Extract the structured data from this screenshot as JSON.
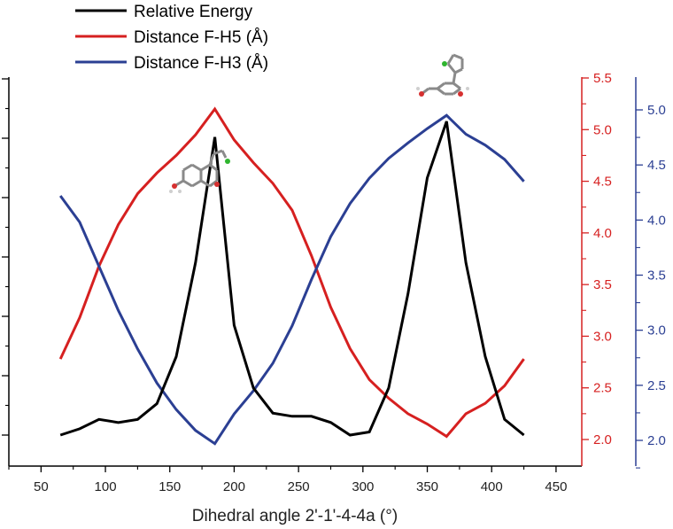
{
  "chart_data": {
    "type": "line",
    "xlabel": "Dihedral angle 2'-1'-4-4a (°)",
    "xlim": [
      25,
      470
    ],
    "x_ticks": [
      50,
      100,
      150,
      200,
      250,
      300,
      350,
      400,
      450
    ],
    "axes": {
      "left": {
        "ylim": [
          0,
          1
        ],
        "color": "#000000",
        "tick_labels": []
      },
      "red": {
        "ylim": [
          1.75,
          5.5
        ],
        "color": "#d62020",
        "ticks": [
          2.0,
          2.5,
          3.0,
          3.5,
          4.0,
          4.5,
          5.0,
          5.5
        ],
        "tick_labels": [
          "2.0",
          "2.5",
          "3.0",
          "3.5",
          "4.0",
          "4.5",
          "5.0",
          "5.5"
        ]
      },
      "blue": {
        "ylim": [
          1.85,
          5.3
        ],
        "color": "#2b3f93",
        "ticks": [
          2.0,
          2.5,
          3.0,
          3.5,
          4.0,
          4.5,
          5.0
        ],
        "tick_labels": [
          "2.0",
          "2.5",
          "3.0",
          "3.5",
          "4.0",
          "4.5",
          "5.0"
        ]
      }
    },
    "x": [
      65,
      80,
      95,
      110,
      125,
      140,
      155,
      170,
      185,
      200,
      215,
      230,
      245,
      260,
      275,
      290,
      305,
      320,
      335,
      350,
      365,
      380,
      395,
      410,
      425
    ],
    "series": [
      {
        "name": "Relative Energy",
        "axis": "left",
        "color": "#000000",
        "values": [
          0.0,
          0.02,
          0.05,
          0.04,
          0.05,
          0.1,
          0.25,
          0.55,
          0.95,
          0.35,
          0.15,
          0.07,
          0.06,
          0.06,
          0.04,
          0.0,
          0.01,
          0.15,
          0.45,
          0.82,
          1.0,
          0.55,
          0.25,
          0.05,
          0.0
        ]
      },
      {
        "name": "Distance F-H5 (Å)",
        "axis": "red",
        "color": "#d62020",
        "values": [
          2.78,
          3.18,
          3.68,
          4.08,
          4.38,
          4.58,
          4.75,
          4.95,
          5.2,
          4.9,
          4.68,
          4.48,
          4.22,
          3.78,
          3.28,
          2.88,
          2.58,
          2.4,
          2.25,
          2.15,
          2.03,
          2.25,
          2.35,
          2.52,
          2.78
        ]
      },
      {
        "name": "Distance F-H3 (Å)",
        "axis": "blue",
        "color": "#2b3f93",
        "values": [
          4.22,
          3.98,
          3.58,
          3.18,
          2.83,
          2.52,
          2.28,
          2.09,
          1.97,
          2.24,
          2.45,
          2.7,
          3.04,
          3.46,
          3.85,
          4.15,
          4.38,
          4.56,
          4.7,
          4.83,
          4.95,
          4.78,
          4.68,
          4.55,
          4.35
        ]
      }
    ],
    "legend": {
      "position": "top-left"
    },
    "annotations": [
      {
        "type": "molecule-image",
        "near_x": 185,
        "label": ""
      },
      {
        "type": "molecule-image",
        "near_x": 365,
        "label": ""
      }
    ]
  }
}
